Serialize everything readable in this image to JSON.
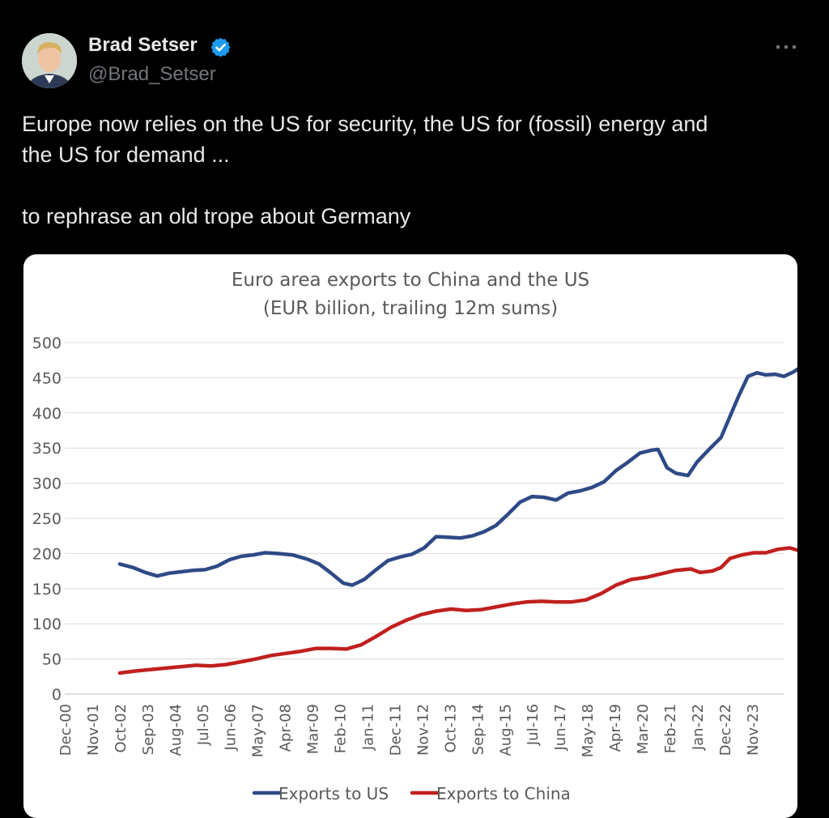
{
  "tweet": {
    "author_name": "Brad Setser",
    "author_handle": "@Brad_Setser",
    "verified": true,
    "more_icon": "more-horizontal-icon",
    "text_line1": "Europe now relies on the US for security, the US for (fossil) energy and",
    "text_line2": "the US for demand ...",
    "text_line3": "to rephrase an old trope about Germany"
  },
  "colors": {
    "background": "#000000",
    "text": "#e7e9ea",
    "muted": "#71767b",
    "verified": "#1d9bf0",
    "us_series": "#2e4a86",
    "china_series": "#c0201e"
  },
  "chart_data": {
    "type": "line",
    "title": "Euro area exports to China and the US",
    "subtitle": "(EUR billion, trailing 12m sums)",
    "xlabel": "",
    "ylabel": "",
    "ylim": [
      0,
      500
    ],
    "yticks": [
      0,
      50,
      100,
      150,
      200,
      250,
      300,
      350,
      400,
      450,
      500
    ],
    "xlim": [
      2000.917,
      2024.917
    ],
    "xticks": [
      {
        "label": "Dec-00",
        "t": 2000.917
      },
      {
        "label": "Nov-01",
        "t": 2001.833
      },
      {
        "label": "Oct-02",
        "t": 2002.75
      },
      {
        "label": "Sep-03",
        "t": 2003.667
      },
      {
        "label": "Aug-04",
        "t": 2004.583
      },
      {
        "label": "Jul-05",
        "t": 2005.5
      },
      {
        "label": "Jun-06",
        "t": 2006.417
      },
      {
        "label": "May-07",
        "t": 2007.333
      },
      {
        "label": "Apr-08",
        "t": 2008.25
      },
      {
        "label": "Mar-09",
        "t": 2009.167
      },
      {
        "label": "Feb-10",
        "t": 2010.083
      },
      {
        "label": "Jan-11",
        "t": 2011.0
      },
      {
        "label": "Dec-11",
        "t": 2011.917
      },
      {
        "label": "Nov-12",
        "t": 2012.833
      },
      {
        "label": "Oct-13",
        "t": 2013.75
      },
      {
        "label": "Sep-14",
        "t": 2014.667
      },
      {
        "label": "Aug-15",
        "t": 2015.583
      },
      {
        "label": "Jul-16",
        "t": 2016.5
      },
      {
        "label": "Jun-17",
        "t": 2017.417
      },
      {
        "label": "May-18",
        "t": 2018.333
      },
      {
        "label": "Apr-19",
        "t": 2019.25
      },
      {
        "label": "Mar-20",
        "t": 2020.167
      },
      {
        "label": "Feb-21",
        "t": 2021.083
      },
      {
        "label": "Jan-22",
        "t": 2022.0
      },
      {
        "label": "Dec-22",
        "t": 2022.917
      },
      {
        "label": "Nov-23",
        "t": 2023.833
      }
    ],
    "grid": true,
    "legend_position": "bottom",
    "series": [
      {
        "name": "Exports to US",
        "color": "#2e4a86",
        "points": [
          [
            2002.75,
            185
          ],
          [
            2003.2,
            180
          ],
          [
            2003.6,
            173
          ],
          [
            2004.0,
            168
          ],
          [
            2004.4,
            172
          ],
          [
            2004.8,
            174
          ],
          [
            2005.2,
            176
          ],
          [
            2005.6,
            177
          ],
          [
            2006.0,
            182
          ],
          [
            2006.4,
            191
          ],
          [
            2006.8,
            196
          ],
          [
            2007.2,
            198
          ],
          [
            2007.6,
            201
          ],
          [
            2008.0,
            200
          ],
          [
            2008.5,
            198
          ],
          [
            2009.0,
            192
          ],
          [
            2009.4,
            185
          ],
          [
            2009.8,
            172
          ],
          [
            2010.2,
            158
          ],
          [
            2010.5,
            155
          ],
          [
            2010.9,
            163
          ],
          [
            2011.3,
            177
          ],
          [
            2011.7,
            190
          ],
          [
            2012.1,
            195
          ],
          [
            2012.5,
            199
          ],
          [
            2012.9,
            208
          ],
          [
            2013.3,
            224
          ],
          [
            2013.7,
            223
          ],
          [
            2014.1,
            222
          ],
          [
            2014.5,
            225
          ],
          [
            2014.9,
            231
          ],
          [
            2015.3,
            240
          ],
          [
            2015.7,
            256
          ],
          [
            2016.1,
            273
          ],
          [
            2016.5,
            281
          ],
          [
            2016.9,
            280
          ],
          [
            2017.3,
            276
          ],
          [
            2017.7,
            286
          ],
          [
            2018.1,
            289
          ],
          [
            2018.5,
            294
          ],
          [
            2018.9,
            302
          ],
          [
            2019.3,
            318
          ],
          [
            2019.7,
            330
          ],
          [
            2020.1,
            343
          ],
          [
            2020.5,
            347
          ],
          [
            2020.7,
            348
          ],
          [
            2021.0,
            322
          ],
          [
            2021.3,
            314
          ],
          [
            2021.7,
            311
          ],
          [
            2022.0,
            330
          ],
          [
            2022.4,
            348
          ],
          [
            2022.8,
            365
          ],
          [
            2023.1,
            395
          ],
          [
            2023.4,
            425
          ],
          [
            2023.7,
            452
          ],
          [
            2024.0,
            457
          ],
          [
            2024.3,
            454
          ],
          [
            2024.6,
            455
          ],
          [
            2024.9,
            452
          ],
          [
            2025.2,
            458
          ],
          [
            2025.5,
            466
          ],
          [
            2025.7,
            470
          ]
        ]
      },
      {
        "name": "Exports to China",
        "color": "#c0201e",
        "points": [
          [
            2002.75,
            30
          ],
          [
            2003.3,
            33
          ],
          [
            2003.8,
            35
          ],
          [
            2004.3,
            37
          ],
          [
            2004.8,
            39
          ],
          [
            2005.3,
            41
          ],
          [
            2005.8,
            40
          ],
          [
            2006.3,
            42
          ],
          [
            2006.8,
            46
          ],
          [
            2007.3,
            50
          ],
          [
            2007.8,
            55
          ],
          [
            2008.3,
            58
          ],
          [
            2008.8,
            61
          ],
          [
            2009.3,
            65
          ],
          [
            2009.8,
            65
          ],
          [
            2010.3,
            64
          ],
          [
            2010.8,
            70
          ],
          [
            2011.3,
            82
          ],
          [
            2011.8,
            95
          ],
          [
            2012.3,
            105
          ],
          [
            2012.8,
            113
          ],
          [
            2013.3,
            118
          ],
          [
            2013.8,
            121
          ],
          [
            2014.3,
            119
          ],
          [
            2014.8,
            120
          ],
          [
            2015.3,
            124
          ],
          [
            2015.8,
            128
          ],
          [
            2016.3,
            131
          ],
          [
            2016.8,
            132
          ],
          [
            2017.3,
            131
          ],
          [
            2017.8,
            131
          ],
          [
            2018.3,
            134
          ],
          [
            2018.8,
            143
          ],
          [
            2019.3,
            155
          ],
          [
            2019.8,
            163
          ],
          [
            2020.3,
            166
          ],
          [
            2020.8,
            171
          ],
          [
            2021.3,
            176
          ],
          [
            2021.8,
            178
          ],
          [
            2022.1,
            173
          ],
          [
            2022.5,
            175
          ],
          [
            2022.8,
            180
          ],
          [
            2023.1,
            193
          ],
          [
            2023.5,
            198
          ],
          [
            2023.9,
            201
          ],
          [
            2024.3,
            201
          ],
          [
            2024.7,
            206
          ],
          [
            2025.1,
            208
          ],
          [
            2025.4,
            204
          ],
          [
            2025.7,
            196
          ]
        ]
      }
    ]
  }
}
